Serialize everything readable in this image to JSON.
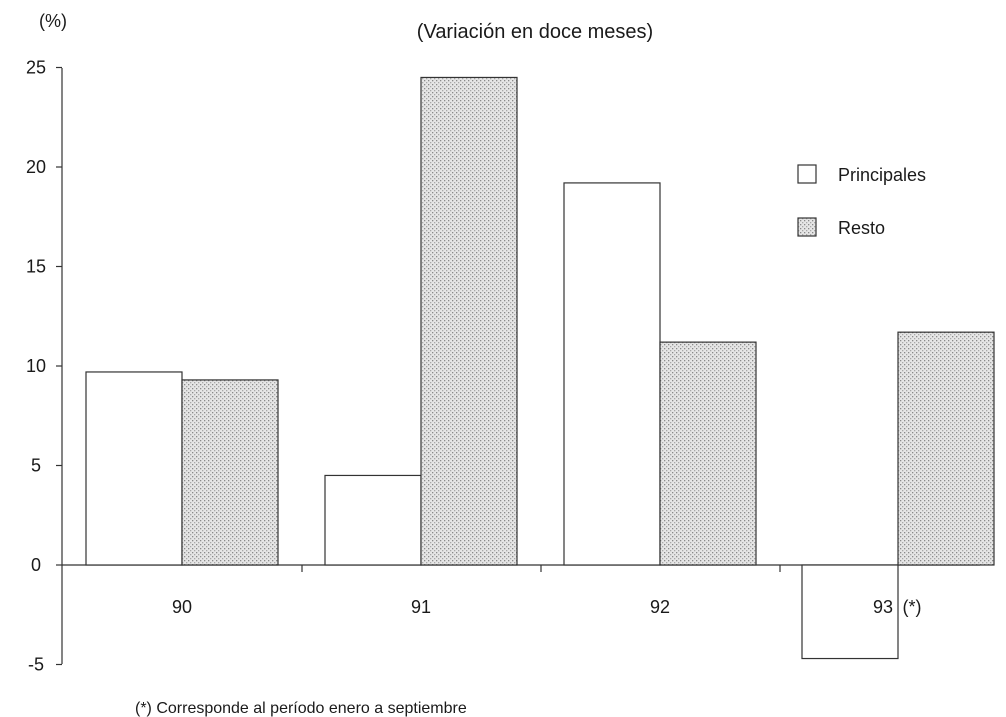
{
  "chart_data": {
    "type": "bar",
    "title": "",
    "subtitle": "(Variación en doce meses)",
    "ylabel": "(%)",
    "xlabel": "",
    "categories": [
      "90",
      "91",
      "92",
      "93"
    ],
    "category_suffix_93": "(*)",
    "ylim": [
      -5,
      25
    ],
    "yticks": [
      "25",
      "20",
      "15",
      "10",
      "5",
      "0",
      "-5"
    ],
    "series": [
      {
        "name": "Principales",
        "values": [
          9.7,
          4.5,
          19.2,
          -4.7
        ]
      },
      {
        "name": "Resto",
        "values": [
          9.3,
          24.5,
          11.2,
          11.7
        ]
      }
    ],
    "legend_position": "right",
    "grid": false,
    "footnote": "(*)  Corresponde al período enero a septiembre",
    "colors": {
      "principales": "#ffffff",
      "resto": "#d8d8d8",
      "axis": "#333333"
    }
  }
}
